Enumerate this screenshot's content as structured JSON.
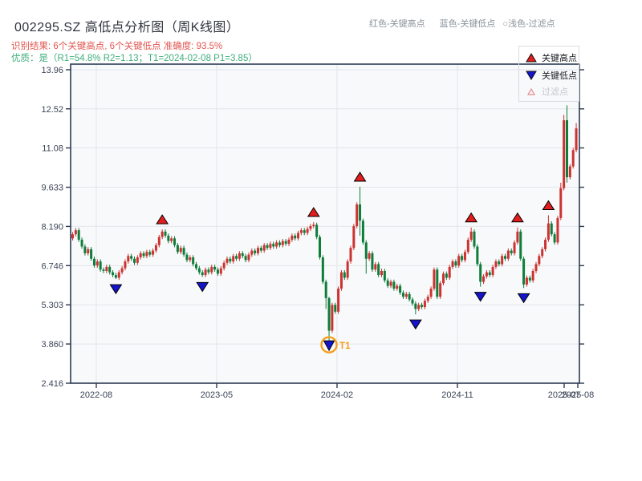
{
  "header": {
    "title": "002295.SZ 高低点分析图（周K线图）",
    "recognition_line": "识别结果: 6个关键高点, 6个关键低点  准确度: 93.5%",
    "quality_line": "优质：是（R1=54.8%  R2=1.13；T1=2024-02-08 P1=3.85）",
    "top_right_hints": [
      "红色-关键高点",
      "蓝色-关键低点",
      "○浅色-过滤点"
    ]
  },
  "legend": {
    "items": [
      {
        "label": "关键高点",
        "marker": "up-triangle-red"
      },
      {
        "label": "关键低点",
        "marker": "down-triangle-blue"
      },
      {
        "label": "过滤点",
        "marker": "hollow-triangle-light"
      }
    ]
  },
  "chart_data": {
    "type": "candlestick",
    "interval": "weekly",
    "ylim": [
      2.416,
      13.96
    ],
    "y_ticks": [
      "13.96",
      "12.52",
      "11.08",
      "9.633",
      "8.190",
      "6.746",
      "5.303",
      "3.860",
      "2.416"
    ],
    "x_ticks": [
      {
        "label": "2022-08",
        "i": 7.66,
        "grid": true
      },
      {
        "label": "2023-05",
        "i": 46.62,
        "grid": true
      },
      {
        "label": "2024-02",
        "i": 85.58,
        "grid": true
      },
      {
        "label": "2024-11",
        "i": 124.55,
        "grid": true
      },
      {
        "label": "2025-07",
        "i": 159.09,
        "grid": false
      },
      {
        "label": "2025-08",
        "i": 163.51,
        "grid": false
      }
    ],
    "first_open": 7.75,
    "default_wick": 0.08,
    "closes": [
      7.9,
      8.05,
      7.7,
      7.45,
      7.2,
      7.35,
      7.0,
      6.75,
      6.9,
      6.6,
      6.55,
      6.7,
      6.5,
      6.4,
      6.3,
      6.5,
      6.65,
      6.9,
      7.1,
      7.0,
      6.85,
      7.05,
      7.2,
      7.1,
      7.25,
      7.15,
      7.3,
      7.5,
      7.8,
      8.0,
      7.85,
      7.65,
      7.75,
      7.5,
      7.25,
      7.4,
      7.15,
      6.95,
      7.05,
      6.8,
      6.65,
      6.5,
      6.4,
      6.6,
      6.5,
      6.7,
      6.6,
      6.45,
      6.65,
      6.85,
      7.0,
      6.9,
      7.1,
      7.0,
      7.2,
      7.1,
      6.95,
      7.15,
      7.3,
      7.2,
      7.4,
      7.3,
      7.5,
      7.4,
      7.55,
      7.45,
      7.6,
      7.5,
      7.65,
      7.55,
      7.7,
      7.85,
      7.75,
      7.95,
      8.05,
      7.95,
      8.1,
      8.2,
      8.25,
      7.8,
      7.05,
      6.15,
      5.55,
      4.35,
      5.3,
      5.05,
      5.9,
      6.5,
      6.3,
      6.9,
      7.4,
      8.2,
      9.0,
      8.4,
      7.6,
      7.0,
      7.2,
      6.6,
      6.8,
      6.4,
      6.55,
      6.2,
      6.0,
      6.15,
      5.9,
      6.0,
      5.75,
      5.6,
      5.7,
      5.5,
      5.35,
      5.15,
      5.3,
      5.22,
      5.45,
      5.6,
      5.9,
      6.6,
      5.6,
      6.1,
      6.45,
      6.3,
      6.7,
      6.9,
      6.75,
      7.1,
      6.95,
      7.25,
      7.7,
      8.0,
      7.45,
      6.8,
      6.15,
      6.35,
      6.5,
      6.4,
      6.7,
      6.9,
      6.8,
      7.1,
      7.0,
      7.3,
      7.2,
      7.6,
      8.0,
      7.0,
      6.05,
      6.3,
      6.2,
      6.55,
      6.8,
      7.1,
      7.35,
      7.7,
      8.3,
      7.9,
      7.6,
      8.5,
      9.6,
      12.1,
      10.0,
      10.4,
      11.0,
      11.8
    ],
    "wick_overrides": {
      "14": {
        "low": 6.25
      },
      "29": {
        "high": 8.08
      },
      "42": {
        "low": 6.33
      },
      "78": {
        "high": 8.35
      },
      "82": {
        "low": 5.15
      },
      "83": {
        "low": 3.86,
        "high": 5.6
      },
      "93": {
        "high": 9.65,
        "low": 7.85
      },
      "95": {
        "low": 6.45
      },
      "111": {
        "low": 4.95
      },
      "129": {
        "high": 8.15
      },
      "132": {
        "low": 5.97
      },
      "144": {
        "high": 8.15
      },
      "146": {
        "low": 5.92
      },
      "154": {
        "high": 8.6
      },
      "158": {
        "high": 9.8
      },
      "159": {
        "high": 12.3
      },
      "160": {
        "high": 12.65,
        "low": 9.8
      },
      "163": {
        "high": 12.0
      }
    },
    "key_highs": [
      {
        "i": 29,
        "price": 8.08
      },
      {
        "i": 78,
        "price": 8.35
      },
      {
        "i": 93,
        "price": 9.65
      },
      {
        "i": 129,
        "price": 8.15
      },
      {
        "i": 144,
        "price": 8.15
      },
      {
        "i": 154,
        "price": 8.6
      }
    ],
    "key_lows": [
      {
        "i": 14,
        "price": 6.25
      },
      {
        "i": 42,
        "price": 6.33
      },
      {
        "i": 83,
        "price": 3.86,
        "annotation": "T1"
      },
      {
        "i": 111,
        "price": 4.95
      },
      {
        "i": 132,
        "price": 5.97
      },
      {
        "i": 146,
        "price": 5.92
      }
    ],
    "colors": {
      "up": "#cc3231",
      "down": "#0e7d3a",
      "key_high": "#e11d1d",
      "key_low": "#1414cc",
      "filtered_edge": "#e09090",
      "annotation": "#f59e1c"
    }
  }
}
